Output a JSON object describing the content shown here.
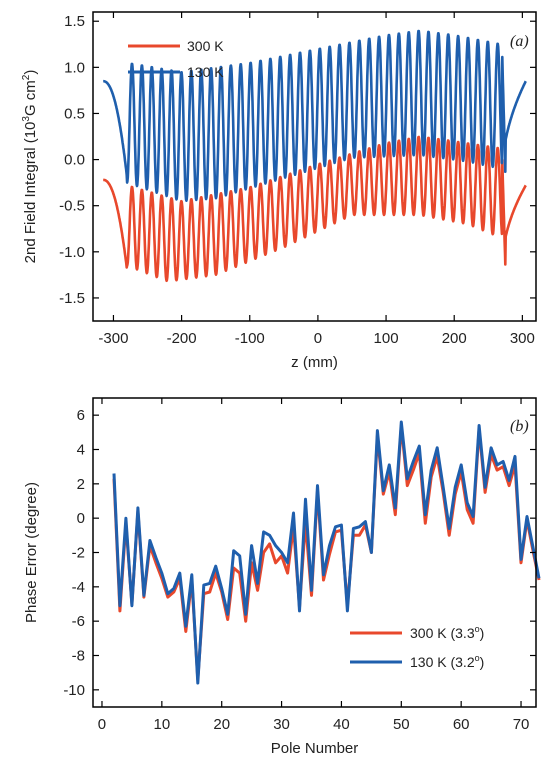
{
  "colors": {
    "series_300k": "#e8482c",
    "series_130k": "#1f5fad",
    "axis": "#000000"
  },
  "chart_data": [
    {
      "type": "line",
      "panel_tag": "(a)",
      "xlabel": "z (mm)",
      "ylabel_parts": [
        "2nd Field Integral (10",
        "3",
        "G cm",
        "2",
        ")"
      ],
      "xlim": [
        -330,
        320
      ],
      "ylim": [
        -1.75,
        1.6
      ],
      "xticks": [
        -300,
        -200,
        -100,
        0,
        100,
        200,
        300
      ],
      "yticks": [
        -1.5,
        -1.0,
        -0.5,
        0.0,
        0.5,
        1.0,
        1.5
      ],
      "ytick_labels": [
        "-1.5",
        "-1.0",
        "-0.5",
        "0.0",
        "0.5",
        "1.0",
        "1.5"
      ],
      "grid": false,
      "legend_position": "top-left",
      "series": [
        {
          "name": "300 K",
          "kind": "oscillation",
          "z_start": -315,
          "z_end": 305,
          "period_mm": 14.5,
          "upper_envelope": [
            [
              -280,
              -0.28
            ],
            [
              -200,
              -0.45
            ],
            [
              -100,
              -0.3
            ],
            [
              0,
              -0.05
            ],
            [
              100,
              0.18
            ],
            [
              150,
              0.25
            ],
            [
              200,
              0.2
            ],
            [
              270,
              0.12
            ]
          ],
          "lower_envelope": [
            [
              -280,
              -1.15
            ],
            [
              -220,
              -1.32
            ],
            [
              -150,
              -1.25
            ],
            [
              -50,
              -0.95
            ],
            [
              50,
              -0.6
            ],
            [
              150,
              -0.6
            ],
            [
              220,
              -0.7
            ],
            [
              270,
              -0.85
            ]
          ],
          "end_start": -0.22,
          "end_dip": -1.2,
          "end_tail": -0.28
        },
        {
          "name": "130 K",
          "kind": "oscillation",
          "z_start": -315,
          "z_end": 305,
          "period_mm": 14.5,
          "upper_envelope": [
            [
              -280,
              1.05
            ],
            [
              -200,
              0.95
            ],
            [
              -100,
              1.05
            ],
            [
              0,
              1.2
            ],
            [
              100,
              1.35
            ],
            [
              150,
              1.4
            ],
            [
              200,
              1.35
            ],
            [
              270,
              1.25
            ]
          ],
          "lower_envelope": [
            [
              -280,
              -0.25
            ],
            [
              -200,
              -0.45
            ],
            [
              -150,
              -0.42
            ],
            [
              -50,
              -0.2
            ],
            [
              50,
              0.02
            ],
            [
              150,
              0.05
            ],
            [
              220,
              -0.02
            ],
            [
              270,
              -0.1
            ]
          ],
          "end_start": 0.85,
          "end_dip": -0.2,
          "end_tail": 0.85
        }
      ]
    },
    {
      "type": "line",
      "panel_tag": "(b)",
      "xlabel": "Pole Number",
      "ylabel": "Phase Error (degree)",
      "xlim": [
        -1.5,
        72.5
      ],
      "ylim": [
        -11,
        7
      ],
      "xticks": [
        0,
        10,
        20,
        30,
        40,
        50,
        60,
        70
      ],
      "yticks": [
        -10,
        -8,
        -6,
        -4,
        -2,
        0,
        2,
        4,
        6
      ],
      "grid": false,
      "legend_position": "bottom-right",
      "x_start": 2,
      "series": [
        {
          "name": "300 K (3.3°)",
          "legend_main": "300 K (3.3",
          "legend_sup": "o",
          "legend_end": ")",
          "values": [
            2.3,
            -5.4,
            -0.3,
            -5.0,
            0.4,
            -4.6,
            -1.6,
            -2.6,
            -3.5,
            -4.6,
            -4.3,
            -3.5,
            -6.6,
            -3.6,
            -9.4,
            -4.4,
            -4.3,
            -3.2,
            -4.3,
            -5.9,
            -2.9,
            -3.2,
            -6.0,
            -2.6,
            -4.2,
            -2.0,
            -1.5,
            -2.6,
            -2.2,
            -3.2,
            -0.5,
            -5.2,
            -0.2,
            -4.5,
            1.6,
            -3.6,
            -2.1,
            -0.8,
            -0.7,
            -5.1,
            -1.0,
            -1.0,
            -0.4,
            -2.0,
            4.8,
            1.4,
            2.7,
            0.2,
            5.4,
            1.9,
            2.8,
            3.8,
            -0.3,
            2.4,
            3.6,
            1.5,
            -1.0,
            1.4,
            2.7,
            0.5,
            -0.3,
            5.2,
            1.5,
            3.7,
            2.8,
            3.0,
            1.9,
            3.1,
            -2.6,
            -0.1,
            -1.9,
            -3.6
          ]
        },
        {
          "name": "130 K (3.2°)",
          "legend_main": "130 K (3.2",
          "legend_sup": "o",
          "legend_end": ")",
          "values": [
            2.6,
            -5.1,
            0.0,
            -5.1,
            0.6,
            -4.5,
            -1.3,
            -2.3,
            -3.2,
            -4.4,
            -4.1,
            -3.2,
            -6.3,
            -3.3,
            -9.6,
            -3.9,
            -3.8,
            -2.8,
            -4.1,
            -5.6,
            -1.9,
            -2.2,
            -5.6,
            -1.6,
            -3.8,
            -0.8,
            -1.0,
            -1.6,
            -2.0,
            -2.6,
            0.3,
            -5.4,
            1.1,
            -4.2,
            1.9,
            -3.3,
            -1.6,
            -0.5,
            -0.4,
            -5.4,
            -0.6,
            -0.5,
            -0.2,
            -2.0,
            5.1,
            1.6,
            3.1,
            0.6,
            5.6,
            2.3,
            3.3,
            4.2,
            0.2,
            2.8,
            4.1,
            1.8,
            -0.6,
            1.8,
            3.1,
            0.9,
            0.1,
            5.4,
            1.8,
            4.1,
            3.1,
            3.3,
            2.2,
            3.6,
            -2.4,
            0.1,
            -1.7,
            -3.5
          ]
        }
      ]
    }
  ]
}
